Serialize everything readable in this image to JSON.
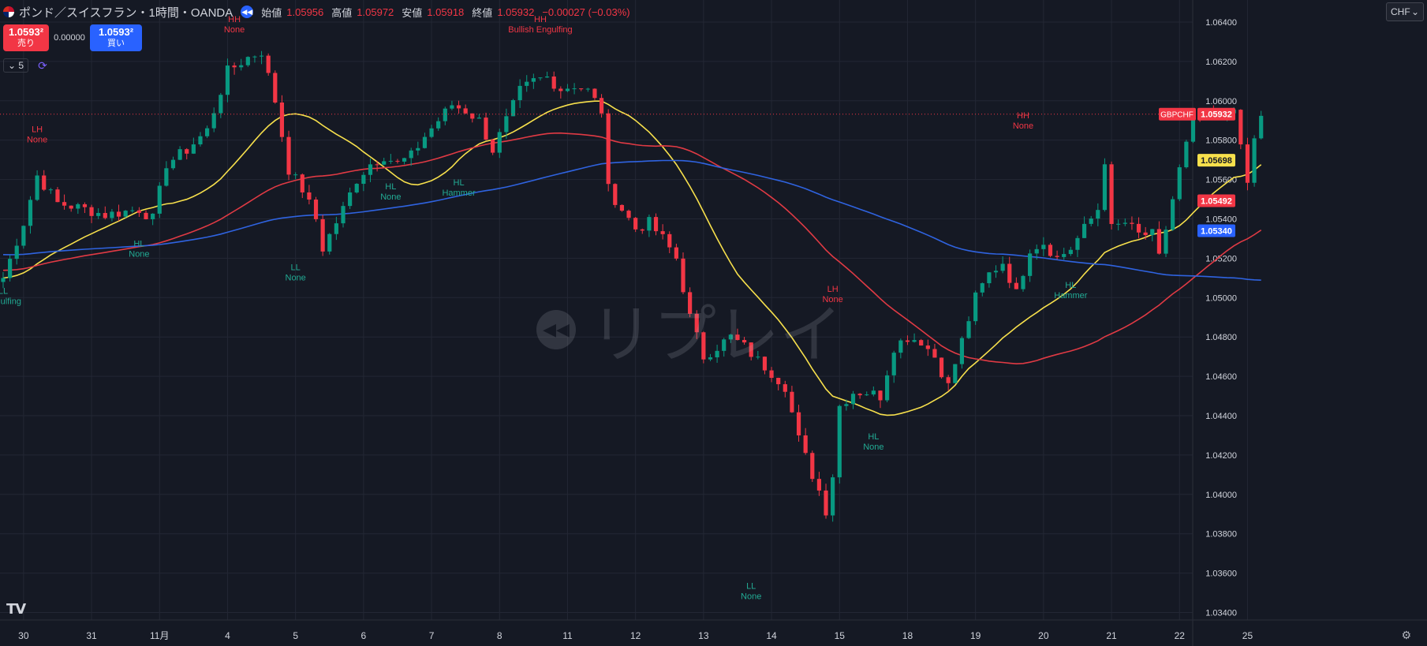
{
  "header": {
    "title": "ポンド／スイスフラン・1時間・OANDA",
    "ohlc": [
      {
        "label": "始値",
        "value": "1.05956"
      },
      {
        "label": "高値",
        "value": "1.05972"
      },
      {
        "label": "安値",
        "value": "1.05918"
      },
      {
        "label": "終値",
        "value": "1.05932"
      }
    ],
    "change": "−0.00027 (−0.03%)"
  },
  "trade": {
    "sell_price": "1.0593²",
    "sell_label": "売り",
    "spread": "0.00000",
    "buy_price": "1.0593²",
    "buy_label": "買い"
  },
  "indicator_count": "5",
  "currency": "CHF",
  "watermark": "リプレイ",
  "icons": [
    "flag-icon",
    "replay-icon",
    "chevron-down-icon",
    "refresh-icon",
    "tradingview-logo-icon",
    "settings-icon"
  ],
  "chart_data": {
    "type": "candlestick",
    "symbol": "GBPCHF",
    "ylim": [
      1.0335,
      1.065
    ],
    "y_ticks": [
      "1.06400",
      "1.06200",
      "1.06000",
      "1.05800",
      "1.05600",
      "1.05400",
      "1.05200",
      "1.05000",
      "1.04800",
      "1.04600",
      "1.04400",
      "1.04200",
      "1.04000",
      "1.03800",
      "1.03600",
      "1.03400"
    ],
    "x_ticks": [
      {
        "label": "30",
        "bar": 3
      },
      {
        "label": "31",
        "bar": 13
      },
      {
        "label": "11月",
        "bar": 23
      },
      {
        "label": "4",
        "bar": 33
      },
      {
        "label": "5",
        "bar": 43
      },
      {
        "label": "6",
        "bar": 53
      },
      {
        "label": "7",
        "bar": 63
      },
      {
        "label": "8",
        "bar": 73
      },
      {
        "label": "11",
        "bar": 83
      },
      {
        "label": "12",
        "bar": 93
      },
      {
        "label": "13",
        "bar": 103
      },
      {
        "label": "14",
        "bar": 113
      },
      {
        "label": "15",
        "bar": 123
      },
      {
        "label": "18",
        "bar": 133
      },
      {
        "label": "19",
        "bar": 143
      },
      {
        "label": "20",
        "bar": 153
      },
      {
        "label": "21",
        "bar": 163
      },
      {
        "label": "22",
        "bar": 173
      },
      {
        "label": "25",
        "bar": 183
      }
    ],
    "bars_total": 185,
    "price_anchors": [
      [
        0,
        1.051
      ],
      [
        3,
        1.0538
      ],
      [
        5,
        1.0562
      ],
      [
        8,
        1.0548
      ],
      [
        12,
        1.0545
      ],
      [
        15,
        1.0542
      ],
      [
        20,
        1.0545
      ],
      [
        22,
        1.054
      ],
      [
        24,
        1.0568
      ],
      [
        27,
        1.0575
      ],
      [
        30,
        1.0585
      ],
      [
        33,
        1.0615
      ],
      [
        36,
        1.0622
      ],
      [
        38,
        1.0625
      ],
      [
        40,
        1.06
      ],
      [
        42,
        1.0565
      ],
      [
        44,
        1.0555
      ],
      [
        46,
        1.054
      ],
      [
        47,
        1.0525
      ],
      [
        50,
        1.0545
      ],
      [
        52,
        1.056
      ],
      [
        54,
        1.0568
      ],
      [
        56,
        1.0572
      ],
      [
        58,
        1.0568
      ],
      [
        60,
        1.0572
      ],
      [
        62,
        1.0582
      ],
      [
        64,
        1.059
      ],
      [
        66,
        1.0598
      ],
      [
        68,
        1.0595
      ],
      [
        70,
        1.059
      ],
      [
        72,
        1.0575
      ],
      [
        74,
        1.059
      ],
      [
        76,
        1.0605
      ],
      [
        78,
        1.061
      ],
      [
        80,
        1.0612
      ],
      [
        82,
        1.0606
      ],
      [
        84,
        1.0608
      ],
      [
        86,
        1.0605
      ],
      [
        88,
        1.0595
      ],
      [
        89,
        1.0555
      ],
      [
        91,
        1.0545
      ],
      [
        93,
        1.0535
      ],
      [
        95,
        1.0538
      ],
      [
        97,
        1.053
      ],
      [
        99,
        1.052
      ],
      [
        101,
        1.049
      ],
      [
        103,
        1.047
      ],
      [
        105,
        1.0475
      ],
      [
        107,
        1.048
      ],
      [
        109,
        1.0475
      ],
      [
        111,
        1.0468
      ],
      [
        113,
        1.0462
      ],
      [
        115,
        1.0455
      ],
      [
        117,
        1.0428
      ],
      [
        119,
        1.041
      ],
      [
        120,
        1.0402
      ],
      [
        121,
        1.0392
      ],
      [
        122,
        1.041
      ],
      [
        123,
        1.0445
      ],
      [
        125,
        1.0452
      ],
      [
        127,
        1.0452
      ],
      [
        129,
        1.045
      ],
      [
        131,
        1.0475
      ],
      [
        133,
        1.048
      ],
      [
        135,
        1.0478
      ],
      [
        137,
        1.047
      ],
      [
        139,
        1.0455
      ],
      [
        141,
        1.0478
      ],
      [
        143,
        1.05
      ],
      [
        145,
        1.0512
      ],
      [
        147,
        1.0518
      ],
      [
        149,
        1.0502
      ],
      [
        151,
        1.0525
      ],
      [
        153,
        1.0528
      ],
      [
        155,
        1.052
      ],
      [
        157,
        1.0525
      ],
      [
        159,
        1.0535
      ],
      [
        161,
        1.0545
      ],
      [
        162,
        1.057
      ],
      [
        163,
        1.0535
      ],
      [
        165,
        1.0538
      ],
      [
        167,
        1.0532
      ],
      [
        169,
        1.0532
      ],
      [
        170,
        1.052
      ],
      [
        171,
        1.0535
      ],
      [
        173,
        1.0565
      ],
      [
        175,
        1.059
      ],
      [
        177,
        1.0592
      ],
      [
        179,
        1.059
      ],
      [
        181,
        1.0598
      ],
      [
        182,
        1.0575
      ],
      [
        183,
        1.0558
      ],
      [
        184,
        1.058
      ],
      [
        185,
        1.0593
      ]
    ],
    "ma_series": [
      {
        "key": "yellow",
        "color": "#f7e04c",
        "period": 20
      },
      {
        "key": "red",
        "color": "#e03a44",
        "period": 50
      },
      {
        "key": "blue",
        "color": "#2f63e0",
        "period": 100
      }
    ],
    "last_values": [
      {
        "label": "GBPCHF",
        "value": "1.05932",
        "price": 1.05932,
        "color": "#f23645"
      },
      {
        "value": "1.05698",
        "price": 1.05698,
        "color": "#f7e04c",
        "text_color": "#151924"
      },
      {
        "value": "1.05492",
        "price": 1.05492,
        "color": "#f23645"
      },
      {
        "value": "1.05340",
        "price": 1.0534,
        "color": "#2962ff"
      }
    ],
    "pattern_labels": [
      {
        "line1": "LL",
        "line2": "Engulfing",
        "bar": 0,
        "price": 1.0502,
        "color": "teal",
        "pos": "below"
      },
      {
        "line1": "LH",
        "line2": "None",
        "bar": 5,
        "price": 1.0584,
        "color": "red",
        "pos": "above"
      },
      {
        "line1": "HL",
        "line2": "None",
        "bar": 20,
        "price": 1.0526,
        "color": "teal",
        "pos": "below"
      },
      {
        "line1": "HH",
        "line2": "None",
        "bar": 34,
        "price": 1.064,
        "color": "red",
        "pos": "above"
      },
      {
        "line1": "LL",
        "line2": "None",
        "bar": 43,
        "price": 1.0514,
        "color": "teal",
        "pos": "below"
      },
      {
        "line1": "HL",
        "line2": "None",
        "bar": 57,
        "price": 1.0555,
        "color": "teal",
        "pos": "below"
      },
      {
        "line1": "HL",
        "line2": "Hammer",
        "bar": 67,
        "price": 1.0557,
        "color": "teal",
        "pos": "below"
      },
      {
        "line1": "HH",
        "line2": "Bullish Engulfing",
        "bar": 79,
        "price": 1.064,
        "color": "red",
        "pos": "above"
      },
      {
        "line1": "LL",
        "line2": "None",
        "bar": 110,
        "price": 1.0352,
        "color": "teal",
        "pos": "below"
      },
      {
        "line1": "LH",
        "line2": "None",
        "bar": 122,
        "price": 1.0503,
        "color": "red",
        "pos": "above"
      },
      {
        "line1": "HL",
        "line2": "None",
        "bar": 128,
        "price": 1.0428,
        "color": "teal",
        "pos": "below"
      },
      {
        "line1": "HH",
        "line2": "None",
        "bar": 150,
        "price": 1.0591,
        "color": "red",
        "pos": "above"
      },
      {
        "line1": "HL",
        "line2": "Hammer",
        "bar": 157,
        "price": 1.0505,
        "color": "teal",
        "pos": "below"
      }
    ]
  }
}
